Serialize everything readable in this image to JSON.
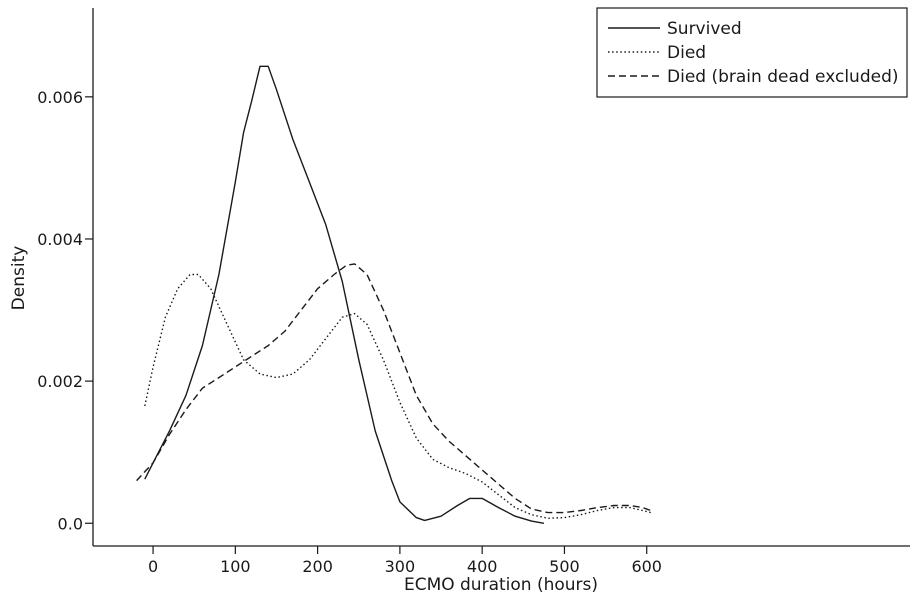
{
  "chart_data": {
    "type": "line",
    "title": "",
    "xlabel": "ECMO duration (hours)",
    "ylabel": "Density",
    "xlim": [
      -73,
      920
    ],
    "ylim": [
      -0.00032,
      0.00725
    ],
    "x_ticks": [
      0,
      100,
      200,
      300,
      400,
      500,
      600
    ],
    "x_tick_labels": [
      "0",
      "100",
      "200",
      "300",
      "400",
      "500",
      "600"
    ],
    "y_ticks": [
      0.0,
      0.002,
      0.004,
      0.006
    ],
    "y_tick_labels": [
      "0.0",
      "0.002",
      "0.004",
      "0.006"
    ],
    "legend_position": "top-right",
    "grid": false,
    "series": [
      {
        "name": "Survived",
        "style": "solid",
        "points": [
          [
            -10,
            0.00062
          ],
          [
            0,
            0.00085
          ],
          [
            20,
            0.0013
          ],
          [
            40,
            0.0018
          ],
          [
            60,
            0.0025
          ],
          [
            80,
            0.0035
          ],
          [
            100,
            0.0048
          ],
          [
            110,
            0.0055
          ],
          [
            120,
            0.00595
          ],
          [
            130,
            0.00643
          ],
          [
            140,
            0.00643
          ],
          [
            150,
            0.0061
          ],
          [
            170,
            0.0054
          ],
          [
            190,
            0.0048
          ],
          [
            210,
            0.0042
          ],
          [
            230,
            0.0034
          ],
          [
            250,
            0.0023
          ],
          [
            270,
            0.0013
          ],
          [
            290,
            0.0006
          ],
          [
            300,
            0.0003
          ],
          [
            320,
            8e-05
          ],
          [
            330,
            4e-05
          ],
          [
            350,
            0.0001
          ],
          [
            370,
            0.00025
          ],
          [
            385,
            0.00035
          ],
          [
            400,
            0.00035
          ],
          [
            420,
            0.00022
          ],
          [
            440,
            0.0001
          ],
          [
            460,
            3e-05
          ],
          [
            475,
            0.0
          ]
        ]
      },
      {
        "name": "Died",
        "style": "dotted",
        "points": [
          [
            -10,
            0.00165
          ],
          [
            0,
            0.0022
          ],
          [
            15,
            0.0029
          ],
          [
            30,
            0.0033
          ],
          [
            45,
            0.0035
          ],
          [
            55,
            0.0035
          ],
          [
            70,
            0.0033
          ],
          [
            90,
            0.0028
          ],
          [
            110,
            0.0023
          ],
          [
            130,
            0.0021
          ],
          [
            150,
            0.00205
          ],
          [
            170,
            0.0021
          ],
          [
            190,
            0.0023
          ],
          [
            210,
            0.0026
          ],
          [
            230,
            0.0029
          ],
          [
            245,
            0.00295
          ],
          [
            260,
            0.0028
          ],
          [
            280,
            0.0023
          ],
          [
            300,
            0.0017
          ],
          [
            320,
            0.0012
          ],
          [
            340,
            0.0009
          ],
          [
            360,
            0.00078
          ],
          [
            380,
            0.0007
          ],
          [
            400,
            0.00058
          ],
          [
            420,
            0.0004
          ],
          [
            440,
            0.00022
          ],
          [
            460,
            0.00012
          ],
          [
            480,
            7e-05
          ],
          [
            500,
            8e-05
          ],
          [
            520,
            0.00012
          ],
          [
            540,
            0.00018
          ],
          [
            560,
            0.00022
          ],
          [
            580,
            0.00022
          ],
          [
            595,
            0.00018
          ],
          [
            605,
            0.00015
          ]
        ]
      },
      {
        "name": "Died (brain dead excluded)",
        "style": "dashed",
        "points": [
          [
            -20,
            0.0006
          ],
          [
            0,
            0.00085
          ],
          [
            20,
            0.00125
          ],
          [
            40,
            0.0016
          ],
          [
            60,
            0.0019
          ],
          [
            80,
            0.00205
          ],
          [
            100,
            0.0022
          ],
          [
            120,
            0.00235
          ],
          [
            140,
            0.0025
          ],
          [
            160,
            0.0027
          ],
          [
            180,
            0.003
          ],
          [
            200,
            0.0033
          ],
          [
            220,
            0.0035
          ],
          [
            235,
            0.00363
          ],
          [
            245,
            0.00365
          ],
          [
            260,
            0.0035
          ],
          [
            280,
            0.003
          ],
          [
            300,
            0.0024
          ],
          [
            320,
            0.0018
          ],
          [
            340,
            0.0014
          ],
          [
            360,
            0.00115
          ],
          [
            380,
            0.00095
          ],
          [
            400,
            0.00075
          ],
          [
            420,
            0.00055
          ],
          [
            440,
            0.00035
          ],
          [
            460,
            0.0002
          ],
          [
            480,
            0.00015
          ],
          [
            500,
            0.00015
          ],
          [
            520,
            0.00018
          ],
          [
            540,
            0.00022
          ],
          [
            560,
            0.00025
          ],
          [
            580,
            0.00025
          ],
          [
            595,
            0.00022
          ],
          [
            605,
            0.00018
          ]
        ]
      }
    ]
  }
}
